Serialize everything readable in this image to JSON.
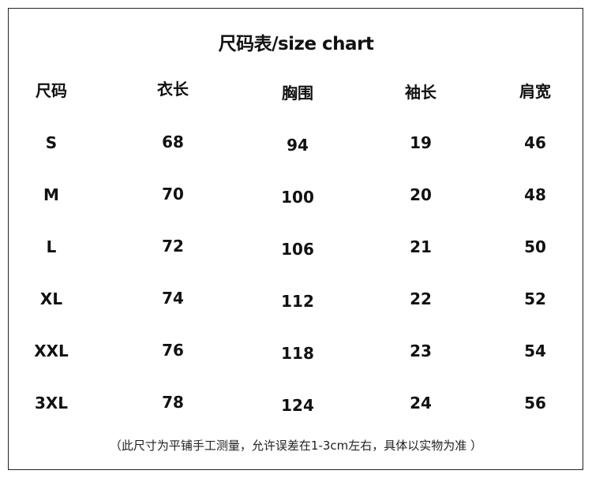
{
  "title": "尺码表/size chart",
  "headers": [
    "尺码",
    "衣长",
    "胸围",
    "袖长",
    "肩宽"
  ],
  "rows": [
    [
      "S",
      "68",
      "94",
      "19",
      "46"
    ],
    [
      "M",
      "70",
      "100",
      "20",
      "48"
    ],
    [
      "L",
      "72",
      "106",
      "21",
      "50"
    ],
    [
      "XL",
      "74",
      "112",
      "22",
      "52"
    ],
    [
      "XXL",
      "76",
      "118",
      "23",
      "54"
    ],
    [
      "3XL",
      "78",
      "124",
      "24",
      "56"
    ]
  ],
  "note": "（此尺寸为平铺手工测量，允许误差在1-3cm左右，具体以实物为准 ）"
}
